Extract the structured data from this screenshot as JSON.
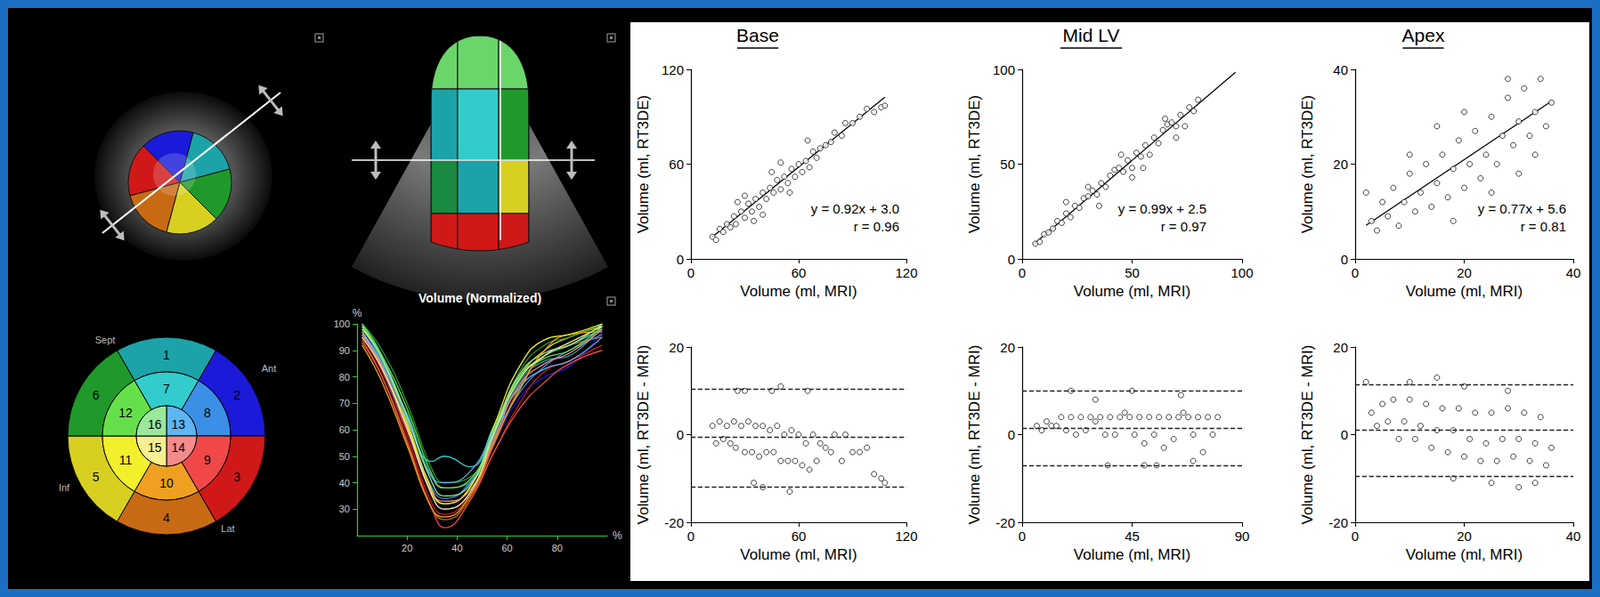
{
  "chart_data": [
    {
      "type": "scatter",
      "title": "Base",
      "x_label": "Volume (ml, MRI)",
      "y_label": "Volume (ml, RT3DE)",
      "xlim": [
        0,
        120
      ],
      "xticks": [
        0,
        60,
        120
      ],
      "ylim": [
        0,
        120
      ],
      "yticks": [
        0,
        60,
        120
      ],
      "grid": false,
      "marker": "circle-open",
      "x": [
        12,
        14,
        16,
        18,
        20,
        22,
        24,
        25,
        28,
        30,
        32,
        34,
        36,
        38,
        40,
        42,
        44,
        46,
        48,
        50,
        52,
        54,
        56,
        58,
        60,
        62,
        64,
        66,
        68,
        70,
        72,
        75,
        78,
        80,
        84,
        86,
        90,
        94,
        98,
        102,
        106,
        108,
        26,
        35,
        45,
        55,
        65,
        40,
        30,
        50
      ],
      "values": [
        14,
        12,
        19,
        17,
        22,
        20,
        27,
        22,
        30,
        26,
        35,
        30,
        38,
        33,
        42,
        38,
        45,
        42,
        50,
        44,
        52,
        48,
        57,
        52,
        60,
        55,
        62,
        58,
        68,
        64,
        70,
        72,
        74,
        80,
        78,
        86,
        86,
        90,
        95,
        93,
        96,
        97,
        36,
        24,
        55,
        42,
        75,
        28,
        40,
        61
      ],
      "fit_line": {
        "x": [
          12,
          108
        ],
        "y": [
          14,
          102.4
        ]
      },
      "annotations": [
        "y = 0.92x + 3.0",
        "r = 0.96"
      ]
    },
    {
      "type": "scatter",
      "title": "Mid LV",
      "x_label": "Volume (ml, MRI)",
      "y_label": "Volume (ml, RT3DE)",
      "xlim": [
        0,
        100
      ],
      "xticks": [
        0,
        50,
        100
      ],
      "ylim": [
        0,
        100
      ],
      "yticks": [
        0,
        50,
        100
      ],
      "grid": false,
      "marker": "circle-open",
      "x": [
        6,
        8,
        10,
        12,
        14,
        16,
        18,
        20,
        22,
        24,
        26,
        28,
        30,
        32,
        34,
        36,
        38,
        40,
        42,
        44,
        46,
        48,
        50,
        52,
        54,
        56,
        58,
        60,
        62,
        64,
        66,
        68,
        70,
        72,
        74,
        76,
        78,
        80,
        20,
        35,
        45,
        55,
        65,
        50,
        30,
        70
      ],
      "values": [
        8,
        9,
        13,
        14,
        16,
        20,
        19,
        24,
        22,
        28,
        27,
        32,
        33,
        36,
        34,
        40,
        38,
        44,
        47,
        48,
        46,
        52,
        48,
        56,
        54,
        60,
        55,
        64,
        61,
        68,
        71,
        72,
        70,
        76,
        70,
        80,
        78,
        84,
        30,
        28,
        55,
        48,
        74,
        43,
        38,
        64
      ],
      "fit_line": {
        "x": [
          5,
          97
        ],
        "y": [
          7.5,
          98.5
        ]
      },
      "annotations": [
        "y = 0.99x + 2.5",
        "r = 0.97"
      ]
    },
    {
      "type": "scatter",
      "title": "Apex",
      "x_label": "Volume (ml, MRI)",
      "y_label": "Volume (ml, RT3DE)",
      "xlim": [
        0,
        40
      ],
      "xticks": [
        0,
        20,
        40
      ],
      "ylim": [
        0,
        40
      ],
      "yticks": [
        0,
        20,
        40
      ],
      "grid": false,
      "marker": "circle-open",
      "x": [
        2,
        3,
        4,
        5,
        6,
        7,
        8,
        9,
        10,
        11,
        12,
        13,
        14,
        15,
        16,
        17,
        18,
        19,
        20,
        21,
        22,
        23,
        24,
        25,
        26,
        27,
        28,
        29,
        30,
        31,
        32,
        33,
        34,
        35,
        36,
        15,
        20,
        25,
        30,
        10,
        18,
        28,
        33
      ],
      "values": [
        14,
        8,
        6,
        12,
        9,
        15,
        7,
        12,
        18,
        10,
        14,
        20,
        11,
        16,
        22,
        13,
        19,
        25,
        15,
        20,
        27,
        17,
        22,
        30,
        20,
        26,
        34,
        24,
        29,
        36,
        26,
        31,
        38,
        28,
        33,
        28,
        31,
        14,
        18,
        22,
        8,
        38,
        22
      ],
      "fit_line": {
        "x": [
          2,
          36
        ],
        "y": [
          7.1,
          33.3
        ]
      },
      "annotations": [
        "y = 0.77x + 5.6",
        "r = 0.81"
      ]
    },
    {
      "type": "scatter",
      "x_label": "Volume (ml, MRI)",
      "y_label": "Volume (ml, RT3DE - MRI)",
      "xlim": [
        0,
        120
      ],
      "xticks": [
        0,
        60,
        120
      ],
      "ylim": [
        -20,
        20
      ],
      "yticks": [
        -20,
        0,
        20
      ],
      "grid": false,
      "marker": "circle-open",
      "x": [
        12,
        14,
        16,
        18,
        20,
        22,
        24,
        25,
        28,
        30,
        32,
        34,
        36,
        38,
        40,
        42,
        44,
        46,
        48,
        50,
        52,
        54,
        56,
        58,
        60,
        62,
        64,
        66,
        68,
        70,
        72,
        75,
        78,
        80,
        84,
        86,
        90,
        94,
        98,
        102,
        106,
        108,
        26,
        35,
        45,
        55,
        65,
        40,
        30,
        50
      ],
      "values": [
        2,
        -2,
        3,
        -1,
        2,
        -2,
        3,
        -3,
        2,
        -4,
        3,
        -4,
        2,
        -5,
        2,
        -4,
        1,
        -4,
        2,
        -6,
        0,
        -6,
        1,
        -6,
        0,
        -7,
        -2,
        -8,
        0,
        -6,
        -2,
        -3,
        -4,
        0,
        -6,
        0,
        -4,
        -4,
        -3,
        -9,
        -10,
        -11,
        10,
        -11,
        10,
        -13,
        10,
        -12,
        10,
        11
      ],
      "hlines": [
        10.5,
        -0.5,
        -12
      ]
    },
    {
      "type": "scatter",
      "x_label": "Volume (ml, MRI)",
      "y_label": "Volume (ml, RT3DE - MRI)",
      "xlim": [
        0,
        90
      ],
      "xticks": [
        0,
        45,
        90
      ],
      "ylim": [
        -20,
        20
      ],
      "yticks": [
        -20,
        0,
        20
      ],
      "grid": false,
      "marker": "circle-open",
      "x": [
        6,
        8,
        10,
        12,
        14,
        16,
        18,
        20,
        22,
        24,
        26,
        28,
        30,
        32,
        34,
        36,
        38,
        40,
        42,
        44,
        46,
        48,
        50,
        52,
        54,
        56,
        58,
        60,
        62,
        64,
        66,
        68,
        70,
        72,
        74,
        76,
        78,
        80,
        20,
        35,
        45,
        55,
        65,
        50,
        30,
        70
      ],
      "values": [
        2,
        1,
        3,
        2,
        2,
        4,
        1,
        4,
        0,
        4,
        1,
        4,
        3,
        4,
        0,
        4,
        0,
        4,
        5,
        4,
        0,
        4,
        -2,
        4,
        0,
        4,
        -3,
        4,
        -1,
        4,
        5,
        4,
        0,
        4,
        -4,
        4,
        0,
        4,
        10,
        -7,
        10,
        -7,
        9,
        -7,
        8,
        -6
      ],
      "hlines": [
        10,
        1.5,
        -7
      ]
    },
    {
      "type": "scatter",
      "x_label": "Volume (ml, MRI)",
      "y_label": "Volume (ml, RT3DE - MRI)",
      "xlim": [
        0,
        40
      ],
      "xticks": [
        0,
        20,
        40
      ],
      "ylim": [
        -20,
        20
      ],
      "yticks": [
        -20,
        0,
        20
      ],
      "grid": false,
      "marker": "circle-open",
      "x": [
        2,
        3,
        4,
        5,
        6,
        7,
        8,
        9,
        10,
        11,
        12,
        13,
        14,
        15,
        16,
        17,
        18,
        19,
        20,
        21,
        22,
        23,
        24,
        25,
        26,
        27,
        28,
        29,
        30,
        31,
        32,
        33,
        34,
        35,
        36,
        15,
        20,
        25,
        30,
        10,
        18,
        28,
        33
      ],
      "values": [
        12,
        5,
        2,
        7,
        3,
        8,
        -1,
        3,
        8,
        -1,
        2,
        7,
        -3,
        1,
        6,
        -4,
        1,
        6,
        -5,
        -1,
        5,
        -6,
        -2,
        5,
        -6,
        -1,
        6,
        -5,
        -1,
        5,
        -6,
        -2,
        4,
        -7,
        -3,
        13,
        11,
        -11,
        -12,
        12,
        -10,
        10,
        -11
      ],
      "hlines": [
        11.5,
        1,
        -9.5
      ]
    },
    {
      "type": "line",
      "x_label": "%",
      "y_label": "%",
      "xlim": [
        0,
        100
      ],
      "xticks": [
        20,
        40,
        60,
        80
      ],
      "ylim": [
        20,
        100
      ],
      "yticks": [
        30,
        40,
        50,
        60,
        70,
        80,
        90,
        100
      ],
      "grid": false,
      "x": [
        2,
        10,
        20,
        30,
        35,
        45,
        55,
        65,
        75,
        85,
        98
      ],
      "series": [
        {
          "color": "#1ba3a8",
          "values": [
            100,
            88,
            65,
            42,
            38,
            40,
            58,
            78,
            86,
            88,
            100
          ]
        },
        {
          "color": "#1a1ad8",
          "values": [
            98,
            85,
            60,
            35,
            30,
            36,
            55,
            72,
            80,
            84,
            97
          ]
        },
        {
          "color": "#d01818",
          "values": [
            95,
            82,
            58,
            32,
            28,
            35,
            52,
            70,
            82,
            86,
            92
          ]
        },
        {
          "color": "#c86a14",
          "values": [
            93,
            80,
            56,
            30,
            26,
            34,
            55,
            76,
            88,
            92,
            95
          ]
        },
        {
          "color": "#d8d020",
          "values": [
            97,
            84,
            62,
            36,
            32,
            38,
            60,
            80,
            90,
            95,
            99
          ]
        },
        {
          "color": "#1f9a2a",
          "values": [
            100,
            90,
            70,
            45,
            40,
            42,
            60,
            82,
            92,
            95,
            100
          ]
        },
        {
          "color": "#33cccc",
          "values": [
            99,
            86,
            66,
            48,
            50,
            46,
            62,
            80,
            88,
            92,
            98
          ]
        },
        {
          "color": "#3b8fe6",
          "values": [
            96,
            83,
            60,
            38,
            34,
            40,
            58,
            74,
            84,
            90,
            96
          ]
        },
        {
          "color": "#f04848",
          "values": [
            94,
            80,
            55,
            30,
            23,
            33,
            52,
            68,
            78,
            85,
            90
          ]
        },
        {
          "color": "#f0a020",
          "values": [
            92,
            78,
            54,
            30,
            27,
            35,
            56,
            75,
            90,
            96,
            97
          ]
        },
        {
          "color": "#f2f02a",
          "values": [
            98,
            87,
            63,
            37,
            32,
            38,
            62,
            84,
            94,
            96,
            100
          ]
        },
        {
          "color": "#66e04a",
          "values": [
            100,
            88,
            68,
            43,
            38,
            41,
            61,
            80,
            87,
            90,
            99
          ]
        },
        {
          "color": "#5fb4f2",
          "values": [
            97,
            85,
            64,
            42,
            40,
            44,
            60,
            76,
            83,
            86,
            95
          ]
        },
        {
          "color": "#f58a8a",
          "values": [
            96,
            84,
            60,
            36,
            33,
            37,
            57,
            77,
            85,
            89,
            98
          ]
        },
        {
          "color": "#f6f090",
          "values": [
            95,
            83,
            61,
            35,
            30,
            36,
            59,
            79,
            88,
            93,
            99
          ]
        },
        {
          "color": "#9ae89a",
          "values": [
            99,
            87,
            65,
            40,
            35,
            39,
            60,
            81,
            89,
            92,
            100
          ]
        }
      ]
    }
  ],
  "bullseye": {
    "segments": [
      {
        "label": "1",
        "color": "#1ba3a8"
      },
      {
        "label": "2",
        "color": "#1a1ad8"
      },
      {
        "label": "3",
        "color": "#d01818"
      },
      {
        "label": "4",
        "color": "#c86a14"
      },
      {
        "label": "5",
        "color": "#d8d020"
      },
      {
        "label": "6",
        "color": "#1f9a2a"
      },
      {
        "label": "7",
        "color": "#33cccc"
      },
      {
        "label": "8",
        "color": "#3b8fe6"
      },
      {
        "label": "9",
        "color": "#f04848"
      },
      {
        "label": "10",
        "color": "#f0a020"
      },
      {
        "label": "11",
        "color": "#f2f02a"
      },
      {
        "label": "12",
        "color": "#66e04a"
      },
      {
        "label": "13",
        "color": "#5fb4f2"
      },
      {
        "label": "14",
        "color": "#f58a8a"
      },
      {
        "label": "15",
        "color": "#f6f090"
      },
      {
        "label": "16",
        "color": "#9ae89a"
      }
    ],
    "walls": [
      "Sept",
      "Ant",
      "Inf",
      "Lat"
    ]
  },
  "echo_caption": "Volume (Normalized)"
}
